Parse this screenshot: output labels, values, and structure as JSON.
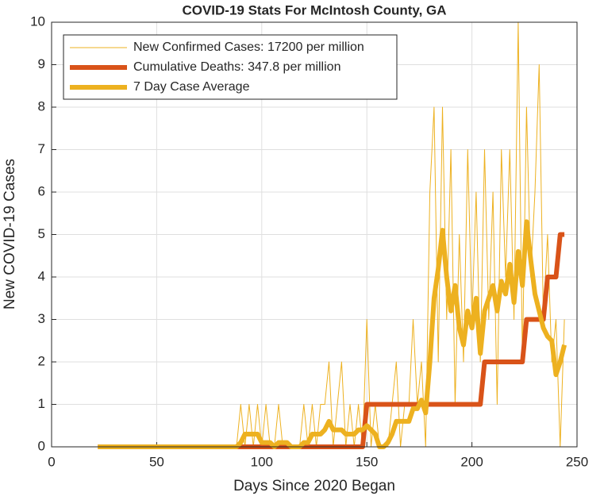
{
  "chart_data": {
    "type": "line",
    "title": "COVID-19 Stats For McIntosh County, GA",
    "xlabel": "Days Since 2020 Began",
    "ylabel": "New COVID-19 Cases",
    "xlim": [
      0,
      250
    ],
    "xticks": [
      0,
      50,
      100,
      150,
      200,
      250
    ],
    "ylim": [
      0,
      10
    ],
    "yticks": [
      0,
      1,
      2,
      3,
      4,
      5,
      6,
      7,
      8,
      9,
      10
    ],
    "grid": true,
    "legend": "upper left",
    "x": [
      22,
      24,
      26,
      28,
      30,
      32,
      34,
      36,
      38,
      40,
      42,
      44,
      46,
      48,
      50,
      52,
      54,
      56,
      58,
      60,
      62,
      64,
      66,
      68,
      70,
      72,
      74,
      76,
      78,
      80,
      82,
      84,
      86,
      88,
      90,
      92,
      94,
      96,
      98,
      100,
      102,
      104,
      106,
      108,
      110,
      112,
      114,
      116,
      118,
      120,
      122,
      124,
      126,
      128,
      130,
      132,
      134,
      136,
      138,
      140,
      142,
      144,
      146,
      148,
      150,
      152,
      154,
      156,
      158,
      160,
      162,
      164,
      166,
      168,
      170,
      172,
      174,
      176,
      178,
      180,
      182,
      184,
      186,
      188,
      190,
      192,
      194,
      196,
      198,
      200,
      202,
      204,
      206,
      208,
      210,
      212,
      214,
      216,
      218,
      220,
      222,
      224,
      226,
      228,
      230,
      232,
      234,
      236,
      238,
      240,
      242,
      244
    ],
    "series": [
      {
        "name": "New Confirmed Cases: 17200 per million",
        "color": "#edb120",
        "values": [
          0,
          0,
          0,
          0,
          0,
          0,
          0,
          0,
          0,
          0,
          0,
          0,
          0,
          0,
          0,
          0,
          0,
          0,
          0,
          0,
          0,
          0,
          0,
          0,
          0,
          0,
          0,
          0,
          0,
          0,
          0,
          0,
          0,
          0,
          1,
          0,
          1,
          0,
          1,
          0,
          1,
          0,
          0,
          1,
          0,
          0,
          0,
          0,
          0,
          1,
          0,
          1,
          0,
          1,
          1,
          2,
          0,
          1,
          2,
          0,
          1,
          0,
          1,
          0,
          3,
          0,
          1,
          0,
          0,
          0,
          1,
          2,
          0,
          1,
          1,
          3,
          1,
          2,
          0,
          6,
          8,
          2,
          8,
          3,
          7,
          1,
          5,
          2,
          7,
          3,
          6,
          2,
          7,
          3,
          6,
          1,
          7,
          4,
          7,
          3,
          10,
          2,
          8,
          4,
          6,
          9,
          3,
          5,
          2,
          3,
          0,
          3
        ]
      },
      {
        "name": "Cumulative Deaths: 347.8 per million",
        "color": "#d95319",
        "values": [
          0,
          0,
          0,
          0,
          0,
          0,
          0,
          0,
          0,
          0,
          0,
          0,
          0,
          0,
          0,
          0,
          0,
          0,
          0,
          0,
          0,
          0,
          0,
          0,
          0,
          0,
          0,
          0,
          0,
          0,
          0,
          0,
          0,
          0,
          0,
          0,
          0,
          0,
          0,
          0,
          0,
          0,
          0,
          0,
          0,
          0,
          0,
          0,
          0,
          0,
          0,
          0,
          0,
          0,
          0,
          0,
          0,
          0,
          0,
          0,
          0,
          0,
          0,
          0,
          1,
          1,
          1,
          1,
          1,
          1,
          1,
          1,
          1,
          1,
          1,
          1,
          1,
          1,
          1,
          1,
          1,
          1,
          1,
          1,
          1,
          1,
          1,
          1,
          1,
          1,
          1,
          1,
          2,
          2,
          2,
          2,
          2,
          2,
          2,
          2,
          2,
          2,
          3,
          3,
          3,
          3,
          3,
          4,
          4,
          4,
          5,
          5
        ]
      },
      {
        "name": "7 Day Case Average",
        "color": "#edb120",
        "values": [
          0,
          0,
          0,
          0,
          0,
          0,
          0,
          0,
          0,
          0,
          0,
          0,
          0,
          0,
          0,
          0,
          0,
          0,
          0,
          0,
          0,
          0,
          0,
          0,
          0,
          0,
          0,
          0,
          0,
          0,
          0,
          0,
          0,
          0,
          0.1,
          0.3,
          0.3,
          0.3,
          0.3,
          0.1,
          0.1,
          0.1,
          0,
          0.1,
          0.1,
          0.1,
          0,
          0,
          0,
          0.1,
          0.1,
          0.3,
          0.3,
          0.3,
          0.4,
          0.6,
          0.4,
          0.4,
          0.4,
          0.3,
          0.3,
          0.3,
          0.4,
          0.4,
          0.5,
          0.4,
          0.3,
          0,
          0,
          0.1,
          0.3,
          0.6,
          0.6,
          0.6,
          0.6,
          0.9,
          0.9,
          1.1,
          0.8,
          2,
          3.5,
          4.2,
          5.1,
          4,
          3.2,
          3.8,
          2.8,
          2.4,
          3.2,
          2.8,
          3.5,
          2.2,
          3.2,
          3.5,
          3.8,
          3.2,
          3.9,
          3.6,
          4.3,
          3.4,
          4.6,
          3.8,
          5.3,
          4.4,
          3.6,
          3.2,
          2.8,
          2.6,
          2.5,
          1.7,
          2,
          2.4
        ]
      }
    ]
  }
}
